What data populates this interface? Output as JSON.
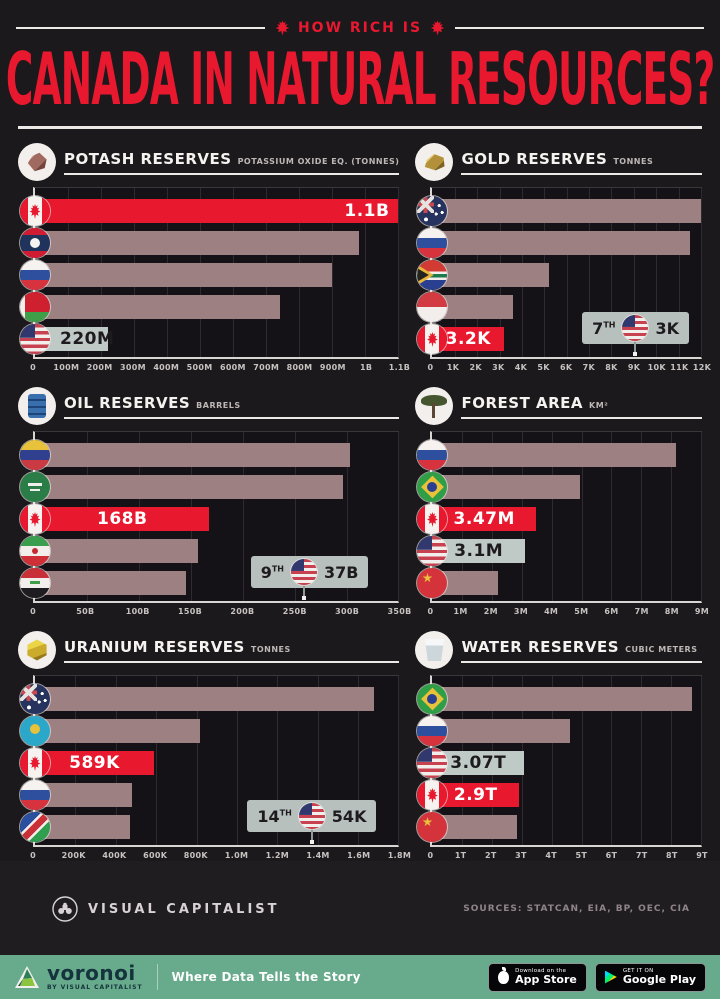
{
  "header": {
    "kicker": "HOW RICH IS",
    "title": "CANADA IN NATURAL RESOURCES?"
  },
  "colors": {
    "accent_red": "#e8192f",
    "bar_default": "#9d8182",
    "bar_usa": "#bfc9c5",
    "background": "#1c191c",
    "footer_green": "#68aa8c"
  },
  "chart_data": [
    {
      "id": "potash",
      "type": "bar",
      "title": "POTASH RESERVES",
      "subtitle": "POTASSIUM OXIDE EQ. (TONNES)",
      "icon": "potash-icon",
      "axis_max": 1100,
      "ticks": [
        "0",
        "100M",
        "200M",
        "300M",
        "400M",
        "500M",
        "600M",
        "700M",
        "800M",
        "900M",
        "1B",
        "1.1B"
      ],
      "bars": [
        {
          "country": "Canada",
          "flag": "ca",
          "value": 1100,
          "label": "1.1B",
          "highlight": "canada",
          "label_align": "right"
        },
        {
          "country": "Laos",
          "flag": "la",
          "value": 980
        },
        {
          "country": "Russia",
          "flag": "ru",
          "value": 900
        },
        {
          "country": "Belarus",
          "flag": "by",
          "value": 740
        },
        {
          "country": "United States",
          "flag": "us",
          "value": 220,
          "label": "220M",
          "highlight": "usa",
          "label_align": "left"
        }
      ],
      "callout": null
    },
    {
      "id": "gold",
      "type": "bar",
      "title": "GOLD RESERVES",
      "subtitle": "TONNES",
      "icon": "gold-icon",
      "axis_max": 12000,
      "ticks": [
        "0",
        "1K",
        "2K",
        "3K",
        "4K",
        "5K",
        "6K",
        "7K",
        "8K",
        "9K",
        "10K",
        "11K",
        "12K"
      ],
      "bars": [
        {
          "country": "Australia",
          "flag": "au",
          "value": 12000
        },
        {
          "country": "Russia",
          "flag": "ru",
          "value": 11500
        },
        {
          "country": "South Africa",
          "flag": "za",
          "value": 5200
        },
        {
          "country": "Indonesia",
          "flag": "id",
          "value": 3600
        },
        {
          "country": "Canada",
          "flag": "ca",
          "value": 3200,
          "label": "3.2K",
          "highlight": "canada",
          "label_align": "center"
        }
      ],
      "callout": {
        "rank": "7",
        "ordinal": "TH",
        "flag": "us",
        "country": "United States",
        "value": "3K"
      }
    },
    {
      "id": "oil",
      "type": "bar",
      "title": "OIL RESERVES",
      "subtitle": "BARRELS",
      "icon": "oil-icon",
      "axis_max": 350,
      "ticks": [
        "0",
        "50B",
        "100B",
        "150B",
        "200B",
        "250B",
        "300B",
        "350B"
      ],
      "bars": [
        {
          "country": "Venezuela",
          "flag": "ve",
          "value": 303
        },
        {
          "country": "Saudi Arabia",
          "flag": "sa",
          "value": 297
        },
        {
          "country": "Canada",
          "flag": "ca",
          "value": 168,
          "label": "168B",
          "highlight": "canada",
          "label_align": "center"
        },
        {
          "country": "Iran",
          "flag": "ir",
          "value": 157
        },
        {
          "country": "Iraq",
          "flag": "iq",
          "value": 145
        }
      ],
      "callout": {
        "rank": "9",
        "ordinal": "TH",
        "flag": "us",
        "country": "United States",
        "value": "37B"
      }
    },
    {
      "id": "forest",
      "type": "bar",
      "title": "FOREST AREA",
      "subtitle": "KM²",
      "icon": "forest-icon",
      "axis_max": 9,
      "ticks": [
        "0",
        "1M",
        "2M",
        "3M",
        "4M",
        "5M",
        "6M",
        "7M",
        "8M",
        "9M"
      ],
      "bars": [
        {
          "country": "Russia",
          "flag": "ru",
          "value": 8.15
        },
        {
          "country": "Brazil",
          "flag": "br",
          "value": 4.95
        },
        {
          "country": "Canada",
          "flag": "ca",
          "value": 3.47,
          "label": "3.47M",
          "highlight": "canada",
          "label_align": "center"
        },
        {
          "country": "United States",
          "flag": "us",
          "value": 3.1,
          "label": "3.1M",
          "highlight": "usa",
          "label_align": "center"
        },
        {
          "country": "China",
          "flag": "cn",
          "value": 2.2
        }
      ],
      "callout": null
    },
    {
      "id": "uranium",
      "type": "bar",
      "title": "URANIUM RESERVES",
      "subtitle": "TONNES",
      "icon": "uranium-icon",
      "axis_max": 1800,
      "ticks": [
        "0",
        "200K",
        "400K",
        "600K",
        "800K",
        "1.0M",
        "1.2M",
        "1.4M",
        "1.6M",
        "1.8M"
      ],
      "bars": [
        {
          "country": "Australia",
          "flag": "au",
          "value": 1680
        },
        {
          "country": "Kazakhstan",
          "flag": "kz",
          "value": 815
        },
        {
          "country": "Canada",
          "flag": "ca",
          "value": 589,
          "label": "589K",
          "highlight": "canada",
          "label_align": "center"
        },
        {
          "country": "Russia",
          "flag": "ru",
          "value": 480
        },
        {
          "country": "Namibia",
          "flag": "na",
          "value": 470
        }
      ],
      "callout": {
        "rank": "14",
        "ordinal": "TH",
        "flag": "us",
        "country": "United States",
        "value": "54K"
      }
    },
    {
      "id": "water",
      "type": "bar",
      "title": "WATER RESERVES",
      "subtitle": "CUBIC METERS",
      "icon": "water-icon",
      "axis_max": 9,
      "ticks": [
        "0",
        "1T",
        "2T",
        "3T",
        "4T",
        "5T",
        "6T",
        "7T",
        "8T",
        "9T"
      ],
      "bars": [
        {
          "country": "Brazil",
          "flag": "br",
          "value": 8.7
        },
        {
          "country": "Russia",
          "flag": "ru",
          "value": 4.6
        },
        {
          "country": "United States",
          "flag": "us",
          "value": 3.07,
          "label": "3.07T",
          "highlight": "usa",
          "label_align": "center"
        },
        {
          "country": "Canada",
          "flag": "ca",
          "value": 2.9,
          "label": "2.9T",
          "highlight": "canada",
          "label_align": "center"
        },
        {
          "country": "China",
          "flag": "cn",
          "value": 2.83
        }
      ],
      "callout": null
    }
  ],
  "footer": {
    "brand": "VISUAL CAPITALIST",
    "sources": "SOURCES: STATCAN, EIA, BP, OEC, CIA",
    "voronoi_name": "voronoi",
    "voronoi_byline": "BY VISUAL CAPITALIST",
    "tagline": "Where Data Tells the Story",
    "badges": [
      {
        "line1": "Download on the",
        "line2": "App Store"
      },
      {
        "line1": "GET IT ON",
        "line2": "Google Play"
      }
    ]
  }
}
